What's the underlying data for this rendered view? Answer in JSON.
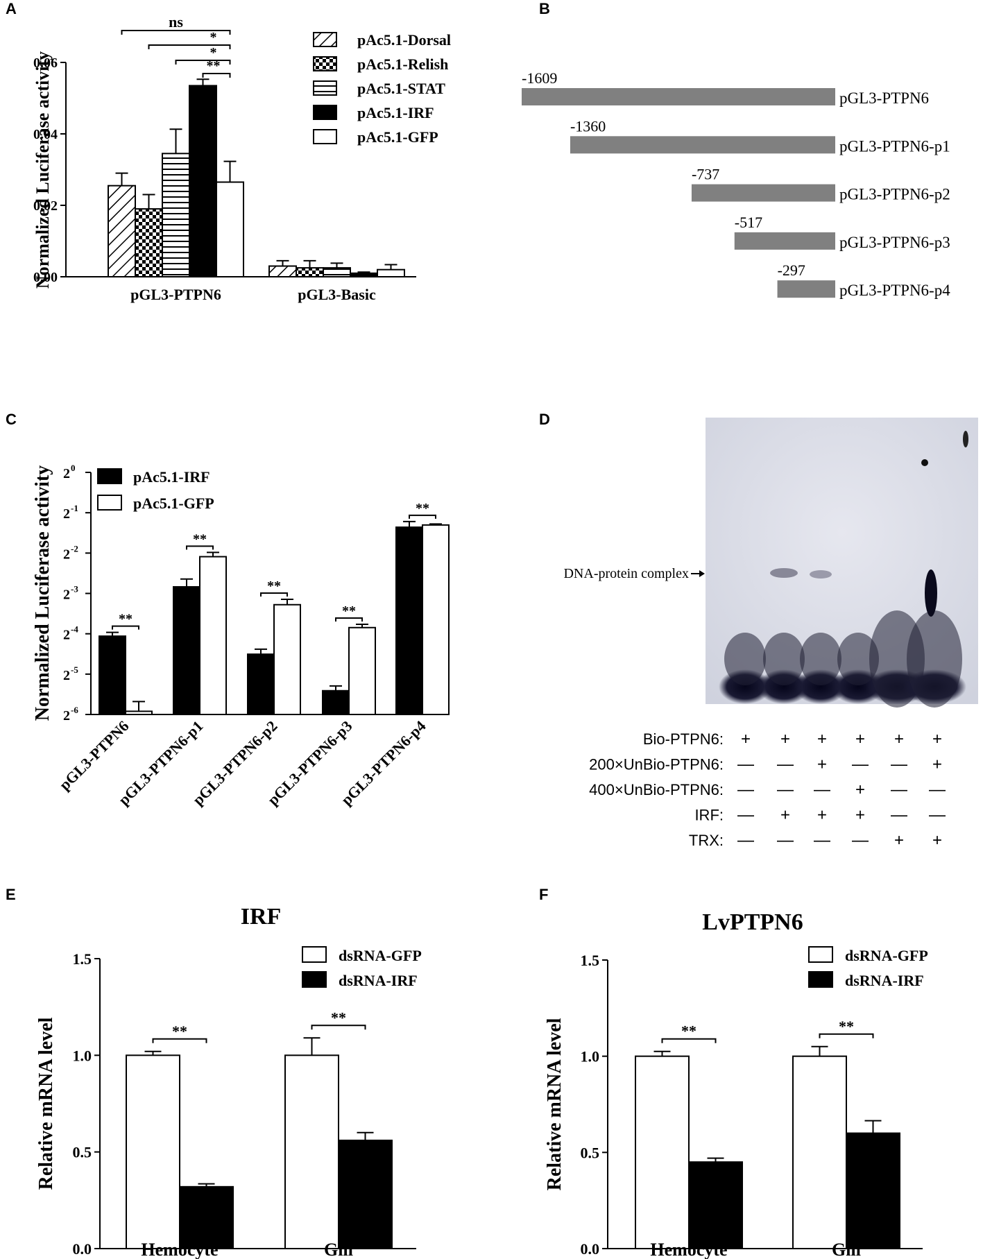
{
  "panels": {
    "A": "A",
    "B": "B",
    "C": "C",
    "D": "D",
    "E": "E",
    "F": "F"
  },
  "chart_data": [
    {
      "id": "A",
      "type": "bar",
      "ylabel": "Normalized Luciferase activity",
      "ylim": [
        0,
        0.06
      ],
      "yticks": [
        "0.00",
        "0.02",
        "0.04",
        "0.06"
      ],
      "ytick_values": [
        0,
        0.02,
        0.04,
        0.06
      ],
      "categories": [
        "pGL3-PTPN6",
        "pGL3-Basic"
      ],
      "series": [
        {
          "name": "pAc5.1-Dorsal",
          "pattern": "diag",
          "values": [
            0.0255,
            0.003
          ],
          "errors": [
            0.0035,
            0.0015
          ]
        },
        {
          "name": "pAc5.1-Relish",
          "pattern": "checker",
          "values": [
            0.019,
            0.0025
          ],
          "errors": [
            0.004,
            0.002
          ]
        },
        {
          "name": "pAc5.1-STAT",
          "pattern": "hlines",
          "values": [
            0.0345,
            0.0025
          ],
          "errors": [
            0.0068,
            0.0013
          ]
        },
        {
          "name": "pAc5.1-IRF",
          "pattern": "solid",
          "values": [
            0.0535,
            0.001
          ],
          "errors": [
            0.0018,
            0.0003
          ]
        },
        {
          "name": "pAc5.1-GFP",
          "pattern": "white",
          "values": [
            0.0265,
            0.002
          ],
          "errors": [
            0.0058,
            0.0014
          ]
        }
      ],
      "significance": [
        {
          "label": "ns",
          "from": 0,
          "to": 4
        },
        {
          "label": "*",
          "from": 1,
          "to": 4
        },
        {
          "label": "*",
          "from": 2,
          "to": 4
        },
        {
          "label": "**",
          "from": 3,
          "to": 4
        }
      ]
    },
    {
      "id": "C",
      "type": "bar",
      "ylabel": "Normalized Luciferase activity",
      "yscale": "log2",
      "ylim": [
        -6,
        0
      ],
      "yticks": [
        "-6",
        "-5",
        "-4",
        "-3",
        "-2",
        "-1",
        "0"
      ],
      "categories": [
        "pGL3-PTPN6",
        "pGL3-PTPN6-p1",
        "pGL3-PTPN6-p2",
        "pGL3-PTPN6-p3",
        "pGL3-PTPN6-p4"
      ],
      "series": [
        {
          "name": "pAc5.1-IRF",
          "fill": "#000000",
          "values": [
            0.06,
            0.14,
            0.044,
            0.0235,
            0.39
          ],
          "errors": [
            0.004,
            0.02,
            0.004,
            0.002,
            0.04
          ]
        },
        {
          "name": "pAc5.1-GFP",
          "fill": "#ffffff",
          "values": [
            0.0165,
            0.235,
            0.103,
            0.0695,
            0.405
          ],
          "errors": [
            0.003,
            0.018,
            0.01,
            0.004,
            0.007
          ]
        }
      ],
      "significance": [
        "**",
        "**",
        "**",
        "**",
        "**"
      ]
    },
    {
      "id": "E",
      "type": "bar",
      "title": "IRF",
      "ylabel": "Relative mRNA level",
      "ylim": [
        0,
        1.5
      ],
      "yticks": [
        "0.0",
        "0.5",
        "1.0",
        "1.5"
      ],
      "ytick_values": [
        0,
        0.5,
        1.0,
        1.5
      ],
      "categories": [
        "Hemocyte",
        "Gill"
      ],
      "series": [
        {
          "name": "dsRNA-GFP",
          "fill": "#ffffff",
          "values": [
            1.0,
            1.0
          ],
          "errors": [
            0.02,
            0.09
          ]
        },
        {
          "name": "dsRNA-IRF",
          "fill": "#000000",
          "values": [
            0.32,
            0.56
          ],
          "errors": [
            0.015,
            0.04
          ]
        }
      ],
      "significance": [
        "**",
        "**"
      ]
    },
    {
      "id": "F",
      "type": "bar",
      "title": "LvPTPN6",
      "ylabel": "Relative mRNA level",
      "ylim": [
        0,
        1.5
      ],
      "yticks": [
        "0.0",
        "0.5",
        "1.0",
        "1.5"
      ],
      "ytick_values": [
        0,
        0.5,
        1.0,
        1.5
      ],
      "categories": [
        "Hemocyte",
        "Gill"
      ],
      "series": [
        {
          "name": "dsRNA-GFP",
          "fill": "#ffffff",
          "values": [
            1.0,
            1.0
          ],
          "errors": [
            0.025,
            0.05
          ]
        },
        {
          "name": "dsRNA-IRF",
          "fill": "#000000",
          "values": [
            0.45,
            0.6
          ],
          "errors": [
            0.02,
            0.065
          ]
        }
      ],
      "significance": [
        "**",
        "**"
      ]
    }
  ],
  "constructs": {
    "id": "B",
    "full_length": 1609,
    "items": [
      {
        "start": "-1609",
        "start_value": -1609,
        "name": "pGL3-PTPN6"
      },
      {
        "start": "-1360",
        "start_value": -1360,
        "name": "pGL3-PTPN6-p1"
      },
      {
        "start": "-737",
        "start_value": -737,
        "name": "pGL3-PTPN6-p2"
      },
      {
        "start": "-517",
        "start_value": -517,
        "name": "pGL3-PTPN6-p3"
      },
      {
        "start": "-297",
        "start_value": -297,
        "name": "pGL3-PTPN6-p4"
      }
    ],
    "bar_color": "#808080"
  },
  "emsa": {
    "id": "D",
    "complex_label": "DNA-protein complex",
    "rows": [
      {
        "label": "Bio-PTPN6:",
        "marks": [
          "+",
          "+",
          "+",
          "+",
          "+",
          "+"
        ]
      },
      {
        "label": "200×UnBio-PTPN6:",
        "marks": [
          "—",
          "—",
          "+",
          "—",
          "—",
          "+"
        ]
      },
      {
        "label": "400×UnBio-PTPN6:",
        "marks": [
          "—",
          "—",
          "—",
          "+",
          "—",
          "—"
        ]
      },
      {
        "label": "IRF:",
        "marks": [
          "—",
          "+",
          "+",
          "+",
          "—",
          "—"
        ]
      },
      {
        "label": "TRX:",
        "marks": [
          "—",
          "—",
          "—",
          "—",
          "+",
          "+"
        ]
      }
    ]
  }
}
